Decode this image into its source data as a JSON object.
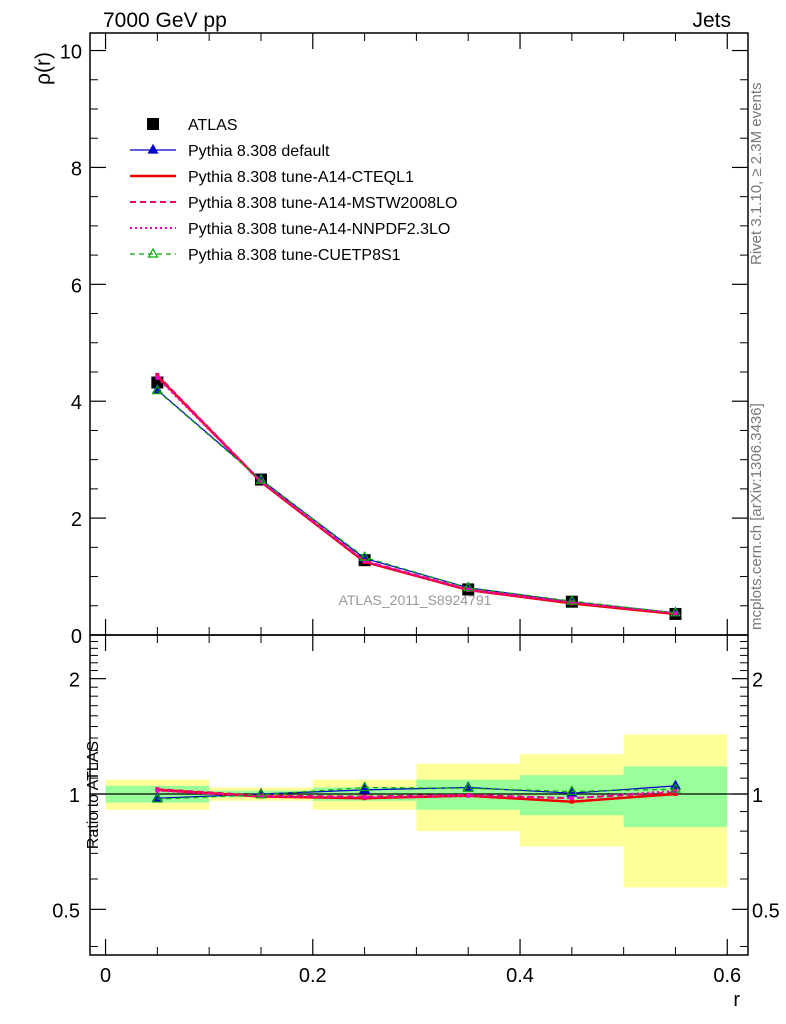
{
  "header": {
    "left": "7000 GeV pp",
    "right": "Jets"
  },
  "side_labels": {
    "rivet": "Rivet 3.1.10, ≥ 2.3M events",
    "mcplots": "mcplots.cern.ch [arXiv:1306.3436]"
  },
  "watermark": "ATLAS_2011_S8924791",
  "legend": {
    "items": [
      {
        "label": "ATLAS",
        "color": "#000000",
        "style": "data"
      },
      {
        "label": "Pythia 8.308 default",
        "color": "#0000cc",
        "style": "solid-triangle"
      },
      {
        "label": "Pythia 8.308 tune-A14-CTEQL1",
        "color": "#ee0000",
        "style": "solid-thick"
      },
      {
        "label": "Pythia 8.308 tune-A14-MSTW2008LO",
        "color": "#ee0066",
        "style": "dashed"
      },
      {
        "label": "Pythia 8.308 tune-A14-NNPDF2.3LO",
        "color": "#ee00cc",
        "style": "dotted"
      },
      {
        "label": "Pythia 8.308 tune-CUETP8S1",
        "color": "#00aa00",
        "style": "dashed-open-triangle"
      }
    ]
  },
  "chart_data": {
    "type": "line",
    "main": {
      "ylabel": "ρ(r)",
      "ylim": [
        0,
        10.3
      ],
      "yticks": [
        0,
        2,
        4,
        6,
        8,
        10
      ],
      "yticklabels": [
        "0",
        "2",
        "4",
        "6",
        "8",
        "10"
      ]
    },
    "ratio": {
      "ylabel": "Ratio to ATLAS",
      "ylog": true,
      "ylim": [
        0.38,
        2.6
      ],
      "yticks": [
        0.5,
        1,
        2
      ],
      "yticklabels": [
        "0.5",
        "1",
        "2"
      ]
    },
    "xlabel": "r",
    "xlim": [
      -0.015,
      0.62
    ],
    "xticks": [
      0,
      0.2,
      0.4,
      0.6
    ],
    "xticklabels": [
      "0",
      "0.2",
      "0.4",
      "0.6"
    ],
    "bins": [
      [
        0,
        0.1
      ],
      [
        0.1,
        0.2
      ],
      [
        0.2,
        0.3
      ],
      [
        0.3,
        0.4
      ],
      [
        0.4,
        0.5
      ],
      [
        0.5,
        0.6
      ]
    ],
    "x": [
      0.05,
      0.15,
      0.25,
      0.35,
      0.45,
      0.55
    ],
    "data": {
      "name": "ATLAS",
      "values": [
        4.32,
        2.66,
        1.28,
        0.78,
        0.57,
        0.36
      ],
      "band_inner": [
        [
          0.95,
          1.05
        ],
        [
          0.98,
          1.02
        ],
        [
          0.96,
          1.04
        ],
        [
          0.91,
          1.09
        ],
        [
          0.88,
          1.12
        ],
        [
          0.82,
          1.18
        ]
      ],
      "band_outer": [
        [
          0.91,
          1.09
        ],
        [
          0.96,
          1.04
        ],
        [
          0.91,
          1.09
        ],
        [
          0.8,
          1.2
        ],
        [
          0.73,
          1.27
        ],
        [
          0.57,
          1.43
        ]
      ]
    },
    "series": [
      {
        "name": "Pythia 8.308 default",
        "values": [
          4.19,
          2.66,
          1.31,
          0.81,
          0.57,
          0.38
        ],
        "ratio": [
          0.975,
          1.0,
          1.025,
          1.04,
          1.005,
          1.05
        ]
      },
      {
        "name": "Pythia 8.308 tune-A14-CTEQL1",
        "values": [
          4.43,
          2.62,
          1.25,
          0.77,
          0.54,
          0.36
        ],
        "ratio": [
          1.025,
          0.985,
          0.975,
          0.99,
          0.955,
          1.0
        ]
      },
      {
        "name": "Pythia 8.308 tune-A14-MSTW2008LO",
        "values": [
          4.45,
          2.63,
          1.27,
          0.78,
          0.56,
          0.37
        ],
        "ratio": [
          1.03,
          0.99,
          0.985,
          0.995,
          0.975,
          1.01
        ]
      },
      {
        "name": "Pythia 8.308 tune-A14-NNPDF2.3LO",
        "values": [
          4.4,
          2.62,
          1.26,
          0.77,
          0.56,
          0.37
        ],
        "ratio": [
          1.02,
          0.985,
          0.98,
          0.99,
          0.975,
          1.02
        ]
      },
      {
        "name": "Pythia 8.308 tune-CUETP8S1",
        "values": [
          4.18,
          2.65,
          1.33,
          0.81,
          0.58,
          0.38
        ],
        "ratio": [
          0.97,
          0.995,
          1.04,
          1.035,
          1.015,
          1.03
        ]
      }
    ]
  }
}
